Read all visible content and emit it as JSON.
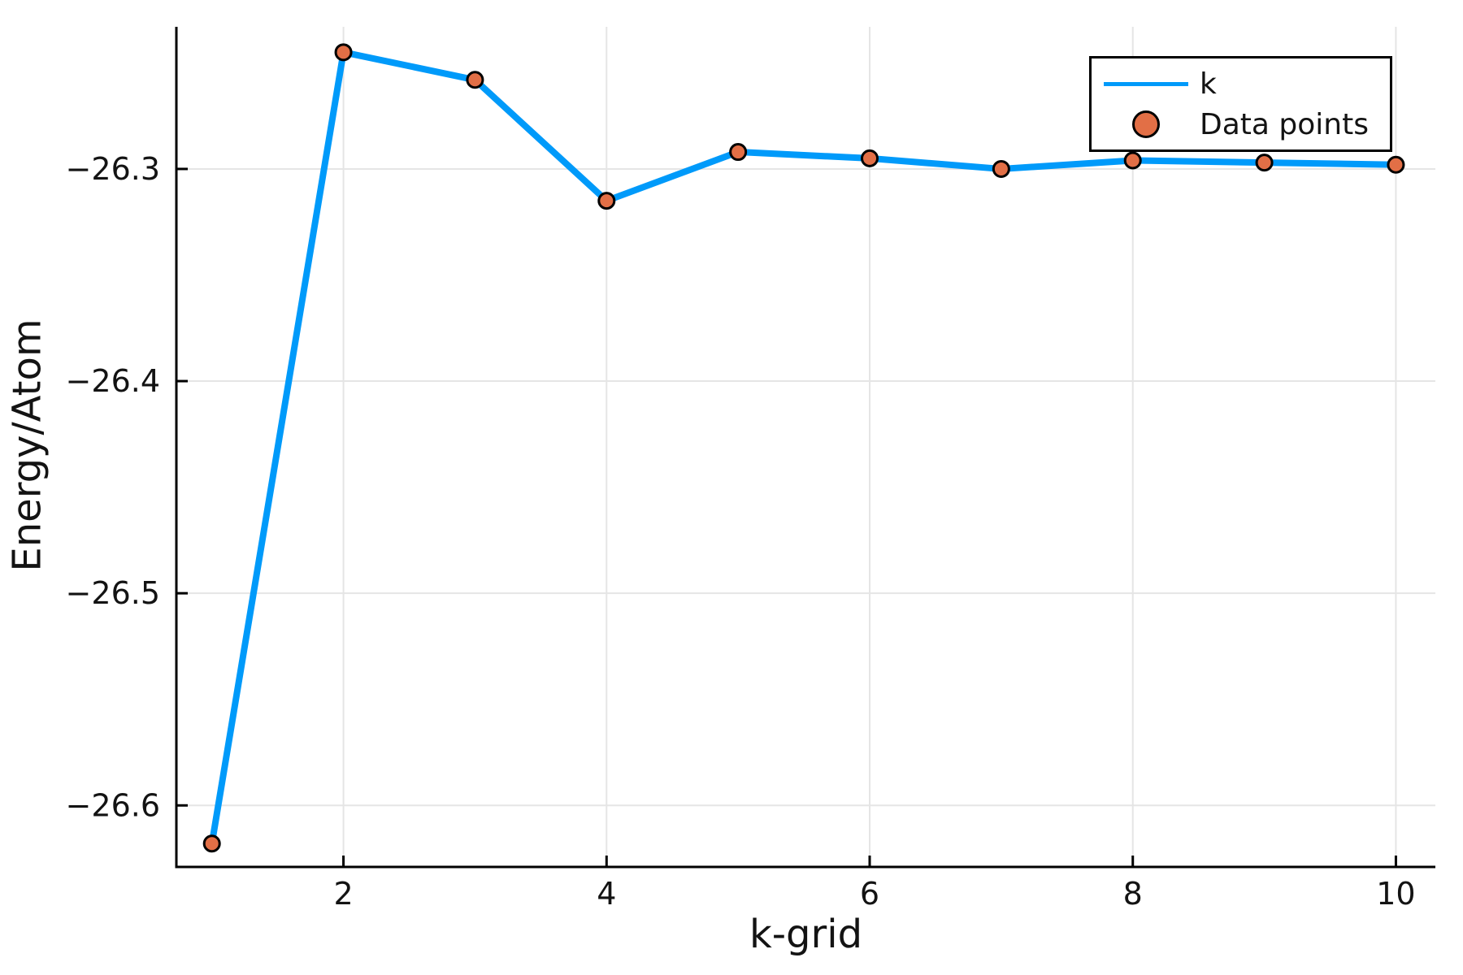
{
  "chart_data": {
    "type": "line",
    "title": "",
    "xlabel": "k-grid",
    "ylabel": "Energy/Atom",
    "x": [
      1,
      2,
      3,
      4,
      5,
      6,
      7,
      8,
      9,
      10
    ],
    "series": [
      {
        "name": "k",
        "style": "line",
        "color": "#009AFA",
        "values": [
          -26.618,
          -26.245,
          -26.258,
          -26.315,
          -26.292,
          -26.295,
          -26.3,
          -26.296,
          -26.297,
          -26.298
        ]
      },
      {
        "name": "Data points",
        "style": "scatter",
        "color": "#E26F46",
        "stroke": "#000000",
        "values": [
          -26.618,
          -26.245,
          -26.258,
          -26.315,
          -26.292,
          -26.295,
          -26.3,
          -26.296,
          -26.297,
          -26.298
        ]
      }
    ],
    "xlim": [
      0.73,
      10.3
    ],
    "ylim": [
      -26.629,
      -26.233
    ],
    "xticks": [
      2,
      4,
      6,
      8,
      10
    ],
    "xtick_labels": [
      "2",
      "4",
      "6",
      "8",
      "10"
    ],
    "yticks": [
      -26.3,
      -26.4,
      -26.5,
      -26.6
    ],
    "ytick_labels": [
      "−26.3",
      "−26.4",
      "−26.5",
      "−26.6"
    ],
    "grid": true,
    "legend_position": "top-right"
  },
  "colors": {
    "line": "#009AFA",
    "marker": "#E26F46",
    "marker_stroke": "#000000",
    "grid": "#E5E5E5",
    "axis": "#000000",
    "text": "#131313",
    "background": "#FFFFFF",
    "legend_border": "#000000"
  }
}
